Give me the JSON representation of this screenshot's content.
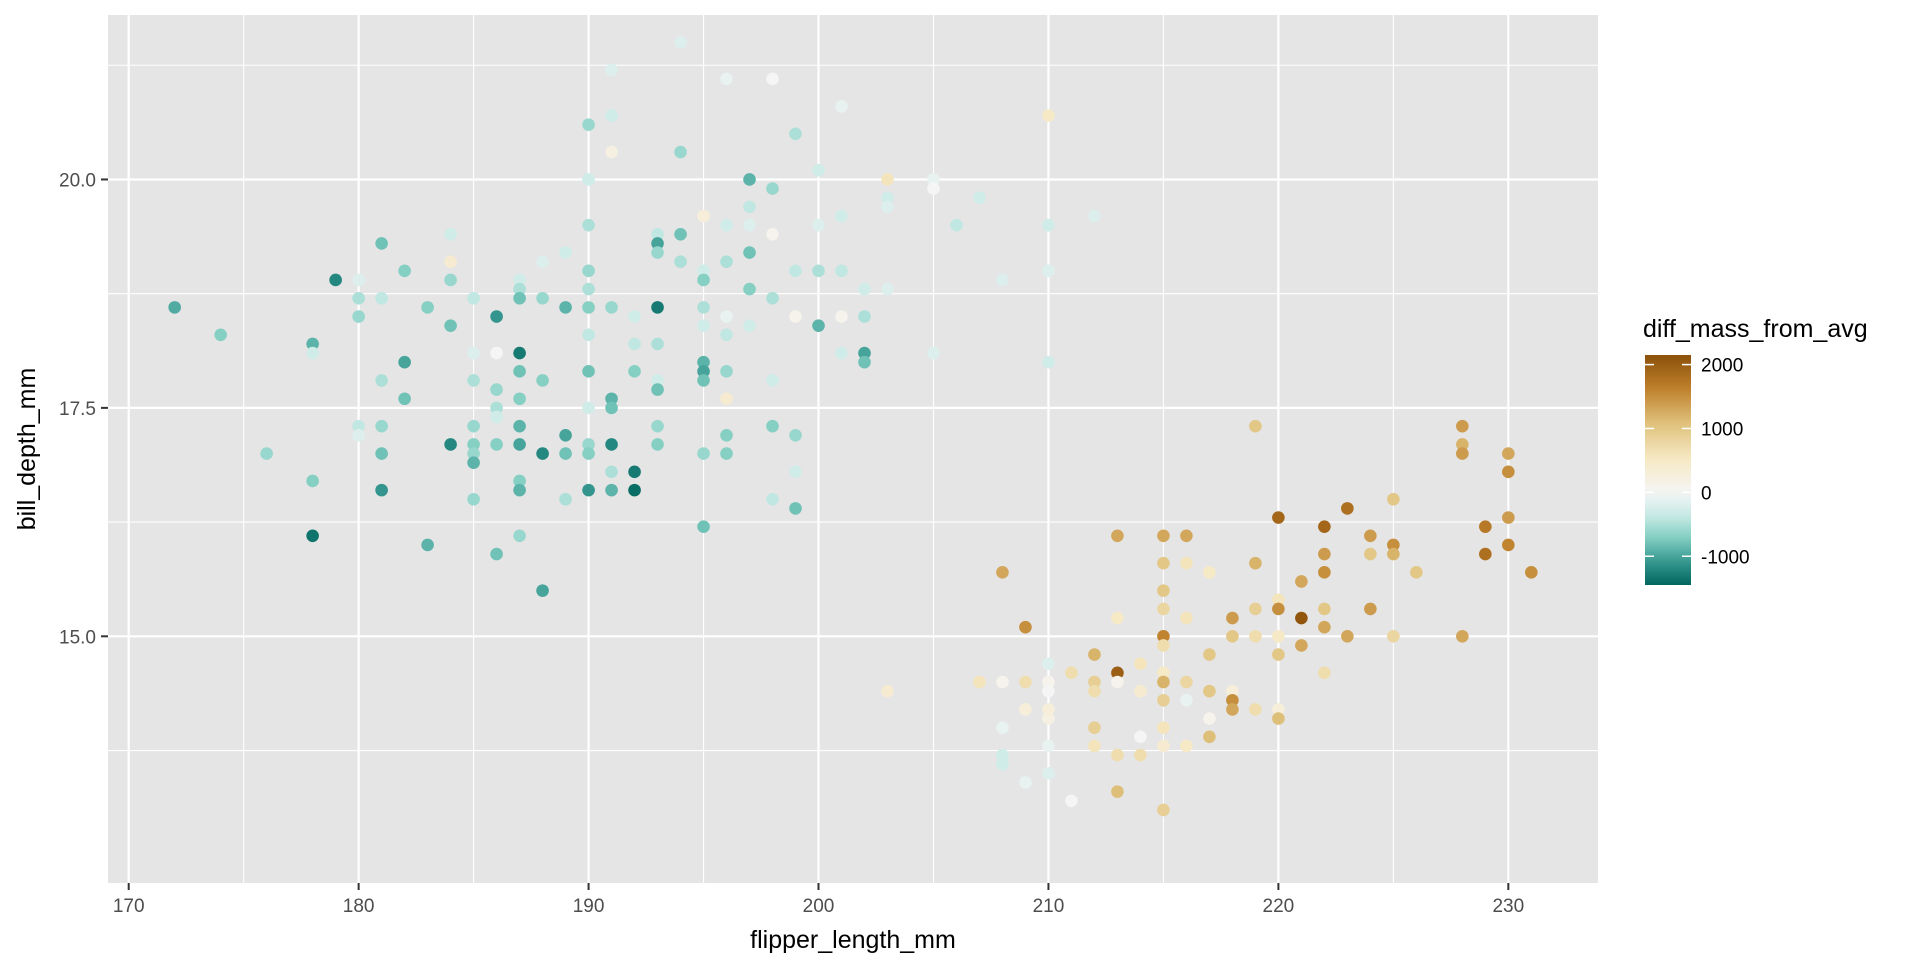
{
  "chart_data": {
    "type": "scatter",
    "title": "",
    "xlabel": "flipper_length_mm",
    "ylabel": "bill_depth_mm",
    "xlim": [
      169.1,
      233.9
    ],
    "ylim": [
      12.3,
      21.8
    ],
    "x_ticks": [
      170,
      180,
      190,
      200,
      210,
      220,
      230
    ],
    "x_tick_labels": [
      "170",
      "180",
      "190",
      "200",
      "210",
      "220",
      "230"
    ],
    "y_ticks": [
      15,
      17.5,
      20
    ],
    "y_tick_labels": [
      "15.0",
      "17.5",
      "20.0"
    ],
    "grid": true,
    "background_color": "#e5e5e5",
    "grid_color": "#ffffff",
    "legend": {
      "title": "diff_mass_from_avg",
      "placement": "right",
      "breaks": [
        2000,
        1000,
        0,
        -1000
      ],
      "break_labels": [
        "2000",
        "1000",
        "0",
        "-1000"
      ],
      "range": [
        -1450,
        2150
      ],
      "colors": [
        "#01665e",
        "#35978f",
        "#80cdc1",
        "#c7eae5",
        "#f5f5f5",
        "#f6e8c3",
        "#dfc27d",
        "#bf812d",
        "#8c510a"
      ]
    },
    "points": [
      [
        172,
        18.6,
        -950
      ],
      [
        174,
        18.3,
        -700
      ],
      [
        176,
        17.0,
        -600
      ],
      [
        178,
        18.2,
        -900
      ],
      [
        178,
        18.1,
        -300
      ],
      [
        178,
        16.7,
        -700
      ],
      [
        178,
        16.1,
        -1350
      ],
      [
        179,
        18.9,
        -1200
      ],
      [
        180,
        18.9,
        -200
      ],
      [
        180,
        18.7,
        -500
      ],
      [
        180,
        18.5,
        -600
      ],
      [
        180,
        17.3,
        -400
      ],
      [
        180,
        17.2,
        -200
      ],
      [
        181,
        19.3,
        -800
      ],
      [
        181,
        18.7,
        -400
      ],
      [
        181,
        17.8,
        -500
      ],
      [
        181,
        17.3,
        -600
      ],
      [
        181,
        17.0,
        -800
      ],
      [
        181,
        16.6,
        -1100
      ],
      [
        182,
        19.0,
        -700
      ],
      [
        182,
        18.0,
        -1000
      ],
      [
        182,
        17.6,
        -800
      ],
      [
        183,
        18.6,
        -700
      ],
      [
        183,
        16.0,
        -900
      ],
      [
        184,
        19.4,
        -300
      ],
      [
        184,
        19.1,
        400
      ],
      [
        184,
        18.9,
        -600
      ],
      [
        184,
        18.4,
        -800
      ],
      [
        184,
        17.1,
        -1200
      ],
      [
        185,
        18.7,
        -400
      ],
      [
        185,
        18.1,
        -200
      ],
      [
        185,
        17.8,
        -500
      ],
      [
        185,
        17.3,
        -600
      ],
      [
        185,
        17.1,
        -700
      ],
      [
        185,
        17.0,
        -600
      ],
      [
        185,
        16.9,
        -900
      ],
      [
        185,
        16.5,
        -600
      ],
      [
        186,
        18.5,
        -1100
      ],
      [
        186,
        18.1,
        0
      ],
      [
        186,
        17.7,
        -600
      ],
      [
        186,
        17.5,
        -500
      ],
      [
        186,
        17.4,
        -300
      ],
      [
        186,
        17.1,
        -700
      ],
      [
        186,
        15.9,
        -800
      ],
      [
        187,
        18.9,
        -300
      ],
      [
        187,
        18.8,
        -500
      ],
      [
        187,
        18.7,
        -800
      ],
      [
        187,
        18.1,
        -1300
      ],
      [
        187,
        17.9,
        -800
      ],
      [
        187,
        17.6,
        -700
      ],
      [
        187,
        17.3,
        -900
      ],
      [
        187,
        17.1,
        -1000
      ],
      [
        187,
        16.7,
        -700
      ],
      [
        187,
        16.6,
        -900
      ],
      [
        187,
        16.1,
        -600
      ],
      [
        188,
        19.1,
        -200
      ],
      [
        188,
        18.7,
        -600
      ],
      [
        188,
        17.8,
        -700
      ],
      [
        188,
        17.0,
        -1200
      ],
      [
        188,
        15.5,
        -1000
      ],
      [
        189,
        19.2,
        -300
      ],
      [
        189,
        18.6,
        -900
      ],
      [
        189,
        17.2,
        -1000
      ],
      [
        189,
        17.0,
        -800
      ],
      [
        189,
        16.5,
        -500
      ],
      [
        190,
        20.6,
        -600
      ],
      [
        190,
        20.0,
        -300
      ],
      [
        190,
        19.5,
        -500
      ],
      [
        190,
        19.0,
        -600
      ],
      [
        190,
        18.8,
        -500
      ],
      [
        190,
        18.6,
        -700
      ],
      [
        190,
        18.3,
        -400
      ],
      [
        190,
        17.9,
        -800
      ],
      [
        190,
        17.5,
        -300
      ],
      [
        190,
        17.1,
        -600
      ],
      [
        190,
        17.0,
        -700
      ],
      [
        190,
        16.6,
        -1100
      ],
      [
        191,
        21.2,
        -200
      ],
      [
        191,
        20.7,
        -300
      ],
      [
        191,
        20.3,
        200
      ],
      [
        191,
        18.6,
        -600
      ],
      [
        191,
        17.6,
        -900
      ],
      [
        191,
        17.5,
        -800
      ],
      [
        191,
        17.1,
        -1200
      ],
      [
        191,
        16.8,
        -500
      ],
      [
        191,
        16.6,
        -900
      ],
      [
        192,
        18.5,
        -300
      ],
      [
        192,
        18.2,
        -400
      ],
      [
        192,
        17.9,
        -700
      ],
      [
        192,
        16.8,
        -1300
      ],
      [
        192,
        16.6,
        -1400
      ],
      [
        193,
        19.4,
        -400
      ],
      [
        193,
        19.3,
        -1000
      ],
      [
        193,
        19.2,
        -600
      ],
      [
        193,
        18.6,
        -1300
      ],
      [
        193,
        18.2,
        -500
      ],
      [
        193,
        17.8,
        -300
      ],
      [
        193,
        17.7,
        -800
      ],
      [
        193,
        17.3,
        -600
      ],
      [
        193,
        17.1,
        -700
      ],
      [
        194,
        21.5,
        -200
      ],
      [
        194,
        20.3,
        -600
      ],
      [
        194,
        19.4,
        -800
      ],
      [
        194,
        19.1,
        -500
      ],
      [
        195,
        19.6,
        300
      ],
      [
        195,
        19.0,
        -300
      ],
      [
        195,
        18.9,
        -700
      ],
      [
        195,
        18.6,
        -500
      ],
      [
        195,
        18.4,
        -300
      ],
      [
        195,
        18.0,
        -900
      ],
      [
        195,
        17.9,
        -1000
      ],
      [
        195,
        17.8,
        -800
      ],
      [
        195,
        17.0,
        -600
      ],
      [
        195,
        16.2,
        -800
      ],
      [
        196,
        21.1,
        -100
      ],
      [
        196,
        19.5,
        -300
      ],
      [
        196,
        19.1,
        -500
      ],
      [
        196,
        18.5,
        -100
      ],
      [
        196,
        18.3,
        -400
      ],
      [
        196,
        17.9,
        -600
      ],
      [
        196,
        17.6,
        400
      ],
      [
        196,
        17.2,
        -700
      ],
      [
        196,
        17.0,
        -700
      ],
      [
        197,
        20.0,
        -900
      ],
      [
        197,
        19.7,
        -400
      ],
      [
        197,
        19.5,
        -200
      ],
      [
        197,
        19.2,
        -800
      ],
      [
        197,
        18.8,
        -700
      ],
      [
        197,
        18.4,
        -300
      ],
      [
        198,
        21.1,
        0
      ],
      [
        198,
        19.9,
        -600
      ],
      [
        198,
        19.4,
        100
      ],
      [
        198,
        18.7,
        -500
      ],
      [
        198,
        17.8,
        -300
      ],
      [
        198,
        17.3,
        -700
      ],
      [
        198,
        16.5,
        -400
      ],
      [
        199,
        20.5,
        -500
      ],
      [
        199,
        19.0,
        -400
      ],
      [
        199,
        18.5,
        100
      ],
      [
        199,
        17.2,
        -600
      ],
      [
        199,
        16.8,
        -300
      ],
      [
        199,
        16.4,
        -800
      ],
      [
        200,
        20.1,
        -300
      ],
      [
        200,
        19.5,
        -200
      ],
      [
        200,
        19.0,
        -500
      ],
      [
        200,
        18.4,
        -900
      ],
      [
        201,
        20.8,
        -100
      ],
      [
        201,
        19.6,
        -300
      ],
      [
        201,
        19.0,
        -400
      ],
      [
        201,
        18.5,
        100
      ],
      [
        201,
        18.1,
        -300
      ],
      [
        202,
        18.8,
        -300
      ],
      [
        202,
        18.5,
        -500
      ],
      [
        202,
        18.1,
        -1000
      ],
      [
        202,
        18.0,
        -800
      ],
      [
        203,
        20.0,
        600
      ],
      [
        203,
        19.8,
        -300
      ],
      [
        203,
        19.7,
        -200
      ],
      [
        203,
        18.8,
        -200
      ],
      [
        203,
        14.4,
        400
      ],
      [
        205,
        20.0,
        -100
      ],
      [
        205,
        19.9,
        0
      ],
      [
        205,
        18.1,
        -200
      ],
      [
        206,
        19.5,
        -400
      ],
      [
        207,
        19.8,
        -300
      ],
      [
        208,
        18.9,
        -200
      ],
      [
        210,
        20.7,
        500
      ],
      [
        210,
        19.5,
        -300
      ],
      [
        210,
        19.0,
        -200
      ],
      [
        210,
        18.0,
        -300
      ],
      [
        212,
        19.6,
        -200
      ],
      [
        207,
        14.5,
        600
      ],
      [
        208,
        15.7,
        1300
      ],
      [
        208,
        14.5,
        100
      ],
      [
        208,
        14.0,
        -100
      ],
      [
        208,
        13.7,
        -300
      ],
      [
        208,
        13.6,
        -300
      ],
      [
        209,
        15.1,
        1500
      ],
      [
        209,
        14.5,
        700
      ],
      [
        209,
        14.2,
        300
      ],
      [
        209,
        13.4,
        -100
      ],
      [
        210,
        14.7,
        -200
      ],
      [
        210,
        14.5,
        100
      ],
      [
        210,
        14.4,
        0
      ],
      [
        210,
        14.1,
        200
      ],
      [
        210,
        14.2,
        300
      ],
      [
        210,
        13.8,
        -100
      ],
      [
        210,
        13.5,
        -200
      ],
      [
        211,
        14.6,
        700
      ],
      [
        211,
        13.2,
        0
      ],
      [
        212,
        14.8,
        1200
      ],
      [
        212,
        14.5,
        900
      ],
      [
        212,
        14.4,
        700
      ],
      [
        212,
        14.0,
        900
      ],
      [
        212,
        13.8,
        600
      ],
      [
        213,
        16.1,
        1300
      ],
      [
        213,
        15.2,
        500
      ],
      [
        213,
        14.6,
        2000
      ],
      [
        213,
        14.5,
        100
      ],
      [
        213,
        13.7,
        700
      ],
      [
        213,
        13.3,
        1100
      ],
      [
        214,
        14.7,
        600
      ],
      [
        214,
        14.4,
        400
      ],
      [
        214,
        13.9,
        0
      ],
      [
        214,
        13.7,
        700
      ],
      [
        215,
        16.1,
        1300
      ],
      [
        215,
        15.8,
        1000
      ],
      [
        215,
        15.5,
        1000
      ],
      [
        215,
        15.3,
        800
      ],
      [
        215,
        15.0,
        1600
      ],
      [
        215,
        14.9,
        700
      ],
      [
        215,
        14.6,
        500
      ],
      [
        215,
        14.5,
        1200
      ],
      [
        215,
        14.3,
        900
      ],
      [
        215,
        14.0,
        600
      ],
      [
        215,
        13.8,
        400
      ],
      [
        215,
        13.1,
        900
      ],
      [
        216,
        16.1,
        1300
      ],
      [
        216,
        15.8,
        600
      ],
      [
        216,
        15.2,
        600
      ],
      [
        216,
        14.5,
        800
      ],
      [
        216,
        14.3,
        -100
      ],
      [
        216,
        13.8,
        500
      ],
      [
        217,
        15.7,
        500
      ],
      [
        217,
        14.8,
        1000
      ],
      [
        217,
        14.4,
        1000
      ],
      [
        217,
        14.1,
        100
      ],
      [
        217,
        13.9,
        1100
      ],
      [
        218,
        15.2,
        1400
      ],
      [
        218,
        15.0,
        1000
      ],
      [
        218,
        14.4,
        300
      ],
      [
        218,
        14.3,
        1500
      ],
      [
        218,
        14.2,
        1300
      ],
      [
        219,
        17.3,
        1000
      ],
      [
        219,
        15.8,
        1200
      ],
      [
        219,
        15.3,
        900
      ],
      [
        219,
        15.0,
        700
      ],
      [
        219,
        14.2,
        700
      ],
      [
        220,
        16.3,
        1900
      ],
      [
        220,
        15.4,
        600
      ],
      [
        220,
        15.3,
        1500
      ],
      [
        220,
        15.0,
        500
      ],
      [
        220,
        14.8,
        1000
      ],
      [
        220,
        14.2,
        300
      ],
      [
        220,
        14.1,
        1100
      ],
      [
        221,
        15.6,
        1300
      ],
      [
        221,
        15.2,
        2100
      ],
      [
        221,
        14.9,
        1300
      ],
      [
        222,
        16.2,
        1900
      ],
      [
        222,
        15.9,
        1400
      ],
      [
        222,
        15.7,
        1500
      ],
      [
        222,
        15.3,
        1000
      ],
      [
        222,
        15.1,
        1300
      ],
      [
        222,
        14.6,
        700
      ],
      [
        223,
        16.4,
        1800
      ],
      [
        223,
        15.0,
        1300
      ],
      [
        224,
        16.1,
        1400
      ],
      [
        224,
        15.9,
        1000
      ],
      [
        224,
        15.3,
        1400
      ],
      [
        225,
        16.5,
        1000
      ],
      [
        225,
        16.0,
        1500
      ],
      [
        225,
        15.9,
        1200
      ],
      [
        225,
        15.0,
        800
      ],
      [
        226,
        15.7,
        1000
      ],
      [
        228,
        17.3,
        1400
      ],
      [
        228,
        17.1,
        1200
      ],
      [
        228,
        17.0,
        1400
      ],
      [
        228,
        15.0,
        1300
      ],
      [
        229,
        16.2,
        1700
      ],
      [
        229,
        15.9,
        1800
      ],
      [
        230,
        17.0,
        1300
      ],
      [
        230,
        16.8,
        1500
      ],
      [
        230,
        16.3,
        1400
      ],
      [
        230,
        16.0,
        1600
      ],
      [
        231,
        15.7,
        1500
      ]
    ]
  }
}
